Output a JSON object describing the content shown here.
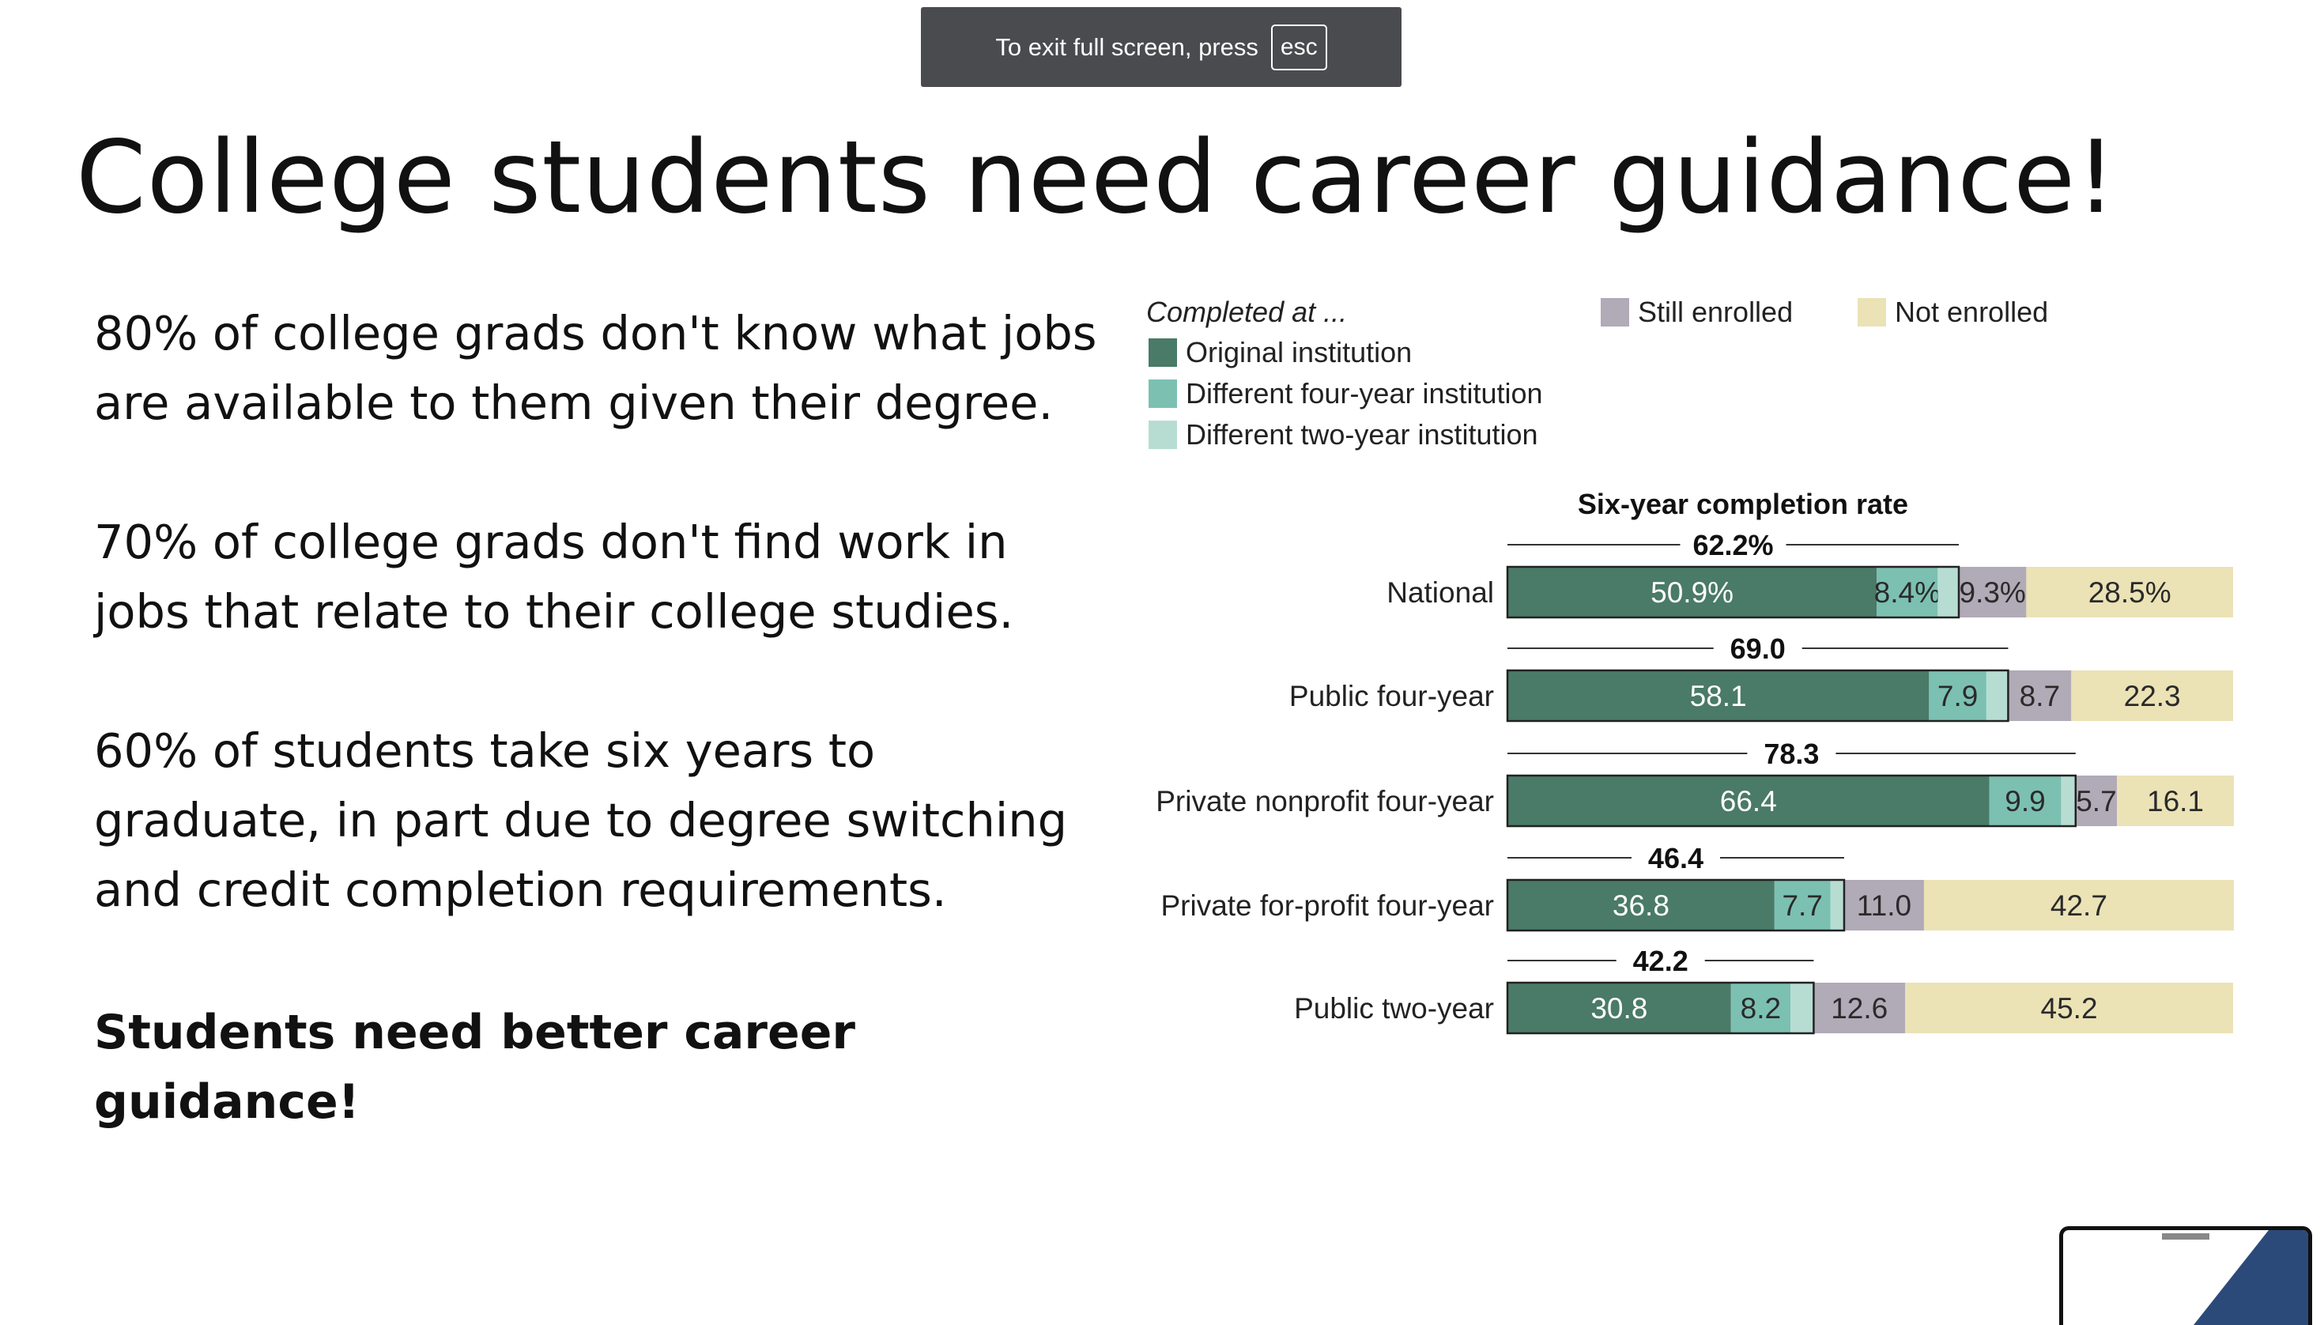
{
  "fullscreen_notice": {
    "text": "To exit full screen, press",
    "key": "esc"
  },
  "slide": {
    "title": "College students need career guidance!",
    "paragraphs": [
      "80% of college grads don't know what jobs are available to them given their degree.",
      "70% of college grads don't find work in jobs that relate to their college studies.",
      "60% of students take six years to graduate, in part due to degree switching and credit completion requirements."
    ],
    "conclusion": "Students need better career guidance!"
  },
  "colors": {
    "original": "#4a7a68",
    "diff4": "#7cc0b2",
    "diff2": "#b7ddd3",
    "still": "#b1aab7",
    "not": "#ebe2b6",
    "banner": "#4a4b4f"
  },
  "chart_data": {
    "type": "bar",
    "orientation": "horizontal",
    "stacked": true,
    "title": "Six-year completion rate",
    "legend_heading": "Completed at ...",
    "legend": [
      {
        "key": "original",
        "label": "Original institution"
      },
      {
        "key": "diff4",
        "label": "Different four-year institution"
      },
      {
        "key": "diff2",
        "label": "Different two-year institution"
      },
      {
        "key": "still",
        "label": "Still enrolled"
      },
      {
        "key": "not",
        "label": "Not enrolled"
      }
    ],
    "categories": [
      "National",
      "Public four-year",
      "Private nonprofit four-year",
      "Private for-profit four-year",
      "Public two-year"
    ],
    "completion_labels": [
      "62.2%",
      "69.0",
      "78.3",
      "46.4",
      "42.2"
    ],
    "completion": [
      62.2,
      69.0,
      78.3,
      46.4,
      42.2
    ],
    "series": [
      {
        "name": "Original institution",
        "key": "original",
        "values": [
          50.9,
          58.1,
          66.4,
          36.8,
          30.8
        ],
        "labels": [
          "50.9%",
          "58.1",
          "66.4",
          "36.8",
          "30.8"
        ]
      },
      {
        "name": "Different four-year institution",
        "key": "diff4",
        "values": [
          8.4,
          7.9,
          9.9,
          7.7,
          8.2
        ],
        "labels": [
          "8.4%",
          "7.9",
          "9.9",
          "7.7",
          "8.2"
        ]
      },
      {
        "name": "Different two-year institution",
        "key": "diff2",
        "values": [
          2.9,
          3.0,
          2.0,
          1.9,
          3.2
        ],
        "labels": [
          "",
          "",
          "",
          "",
          ""
        ]
      },
      {
        "name": "Still enrolled",
        "key": "still",
        "values": [
          9.3,
          8.7,
          5.7,
          11.0,
          12.6
        ],
        "labels": [
          "9.3%",
          "8.7",
          "5.7",
          "11.0",
          "12.6"
        ]
      },
      {
        "name": "Not enrolled",
        "key": "not",
        "values": [
          28.5,
          22.3,
          16.1,
          42.7,
          45.2
        ],
        "labels": [
          "28.5%",
          "22.3",
          "16.1",
          "42.7",
          "45.2"
        ]
      }
    ],
    "xlim": [
      0,
      100
    ],
    "grid": false,
    "legend_position": "top"
  }
}
